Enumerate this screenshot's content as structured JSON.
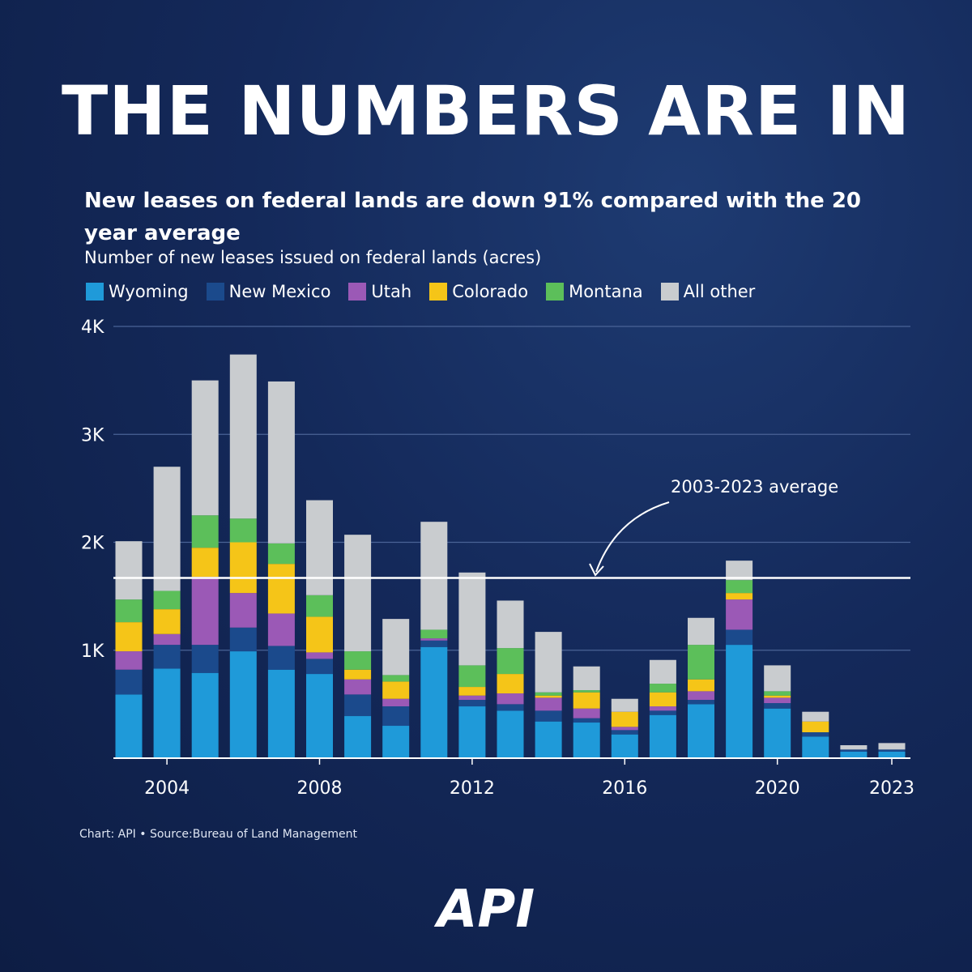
{
  "headline": "THE NUMBERS ARE IN",
  "subtitle": "New leases on federal lands are down 91% compared with the 20 year average",
  "source": "Chart: API • Source:Bureau of Land Management",
  "logo_text": "API",
  "chart_data": {
    "type": "bar",
    "stacked": true,
    "ylabel": "Number of new leases issued on federal lands (acres)",
    "ylim": [
      0,
      4000
    ],
    "y_ticks": [
      {
        "value": 1000,
        "label": "1K"
      },
      {
        "value": 2000,
        "label": "2K"
      },
      {
        "value": 3000,
        "label": "3K"
      },
      {
        "value": 4000,
        "label": "4K"
      }
    ],
    "x_ticks": [
      {
        "value": 2004,
        "label": "2004"
      },
      {
        "value": 2008,
        "label": "2008"
      },
      {
        "value": 2012,
        "label": "2012"
      },
      {
        "value": 2016,
        "label": "2016"
      },
      {
        "value": 2020,
        "label": "2020"
      },
      {
        "value": 2023,
        "label": "2023"
      }
    ],
    "grid": true,
    "legend_position": "top-left",
    "categories": [
      2003,
      2004,
      2005,
      2006,
      2007,
      2008,
      2009,
      2010,
      2011,
      2012,
      2013,
      2014,
      2015,
      2016,
      2017,
      2018,
      2019,
      2020,
      2021,
      2022,
      2023
    ],
    "series": [
      {
        "name": "Wyoming",
        "color": "#1f9ad9",
        "values": [
          590,
          830,
          790,
          990,
          820,
          780,
          390,
          300,
          1030,
          480,
          440,
          340,
          330,
          220,
          400,
          500,
          1050,
          460,
          200,
          60,
          60
        ]
      },
      {
        "name": "New Mexico",
        "color": "#1b4a8c",
        "values": [
          230,
          220,
          260,
          220,
          220,
          140,
          200,
          180,
          60,
          60,
          60,
          100,
          40,
          40,
          40,
          40,
          140,
          50,
          40,
          20,
          20
        ]
      },
      {
        "name": "Utah",
        "color": "#9b59b6",
        "values": [
          170,
          100,
          630,
          320,
          300,
          60,
          140,
          70,
          20,
          40,
          100,
          120,
          90,
          30,
          40,
          80,
          280,
          50,
          0,
          0,
          0
        ]
      },
      {
        "name": "Colorado",
        "color": "#f5c518",
        "values": [
          270,
          230,
          270,
          470,
          460,
          330,
          90,
          160,
          0,
          80,
          180,
          20,
          150,
          140,
          130,
          110,
          60,
          20,
          100,
          0,
          0
        ]
      },
      {
        "name": "Montana",
        "color": "#5cbf5a",
        "values": [
          210,
          170,
          300,
          220,
          190,
          200,
          170,
          60,
          80,
          200,
          240,
          30,
          20,
          0,
          80,
          320,
          120,
          40,
          0,
          0,
          0
        ]
      },
      {
        "name": "All other",
        "color": "#c9cccf",
        "values": [
          540,
          1150,
          1250,
          1520,
          1500,
          880,
          1080,
          520,
          1000,
          860,
          440,
          560,
          220,
          120,
          220,
          250,
          180,
          240,
          90,
          40,
          60
        ]
      }
    ],
    "average": {
      "value": 1670,
      "label": "2003-2023 average"
    }
  }
}
